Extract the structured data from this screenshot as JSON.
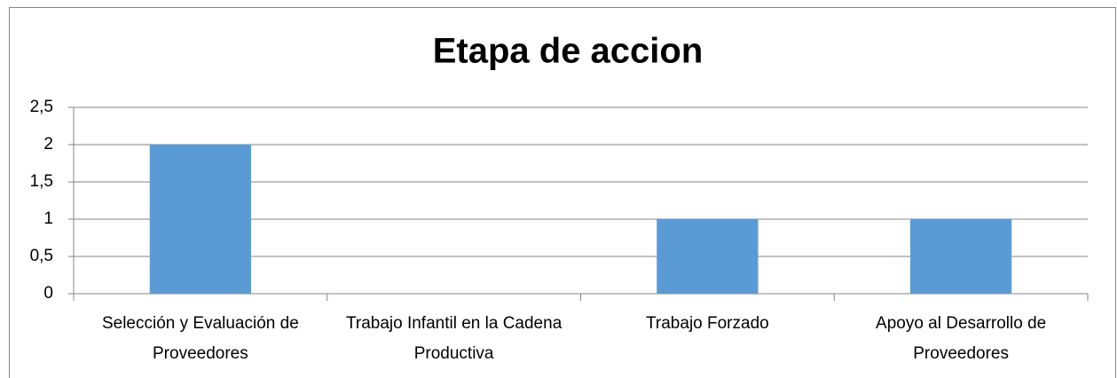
{
  "chart_data": {
    "type": "bar",
    "title": "Etapa de accion",
    "categories": [
      "Selección y Evaluación de Proveedores",
      "Trabajo Infantil en la Cadena Productiva",
      "Trabajo Forzado",
      "Apoyo al Desarrollo de Proveedores"
    ],
    "values": [
      2,
      0,
      1,
      1
    ],
    "color": "#5b9bd5",
    "ylim": [
      0,
      2.5
    ],
    "yticks": [
      0,
      {
        "value": 0.5,
        "label": "0,5"
      },
      1,
      {
        "value": 1.5,
        "label": "1,5"
      },
      2,
      {
        "value": 2.5,
        "label": "2,5"
      }
    ],
    "grid": true
  }
}
